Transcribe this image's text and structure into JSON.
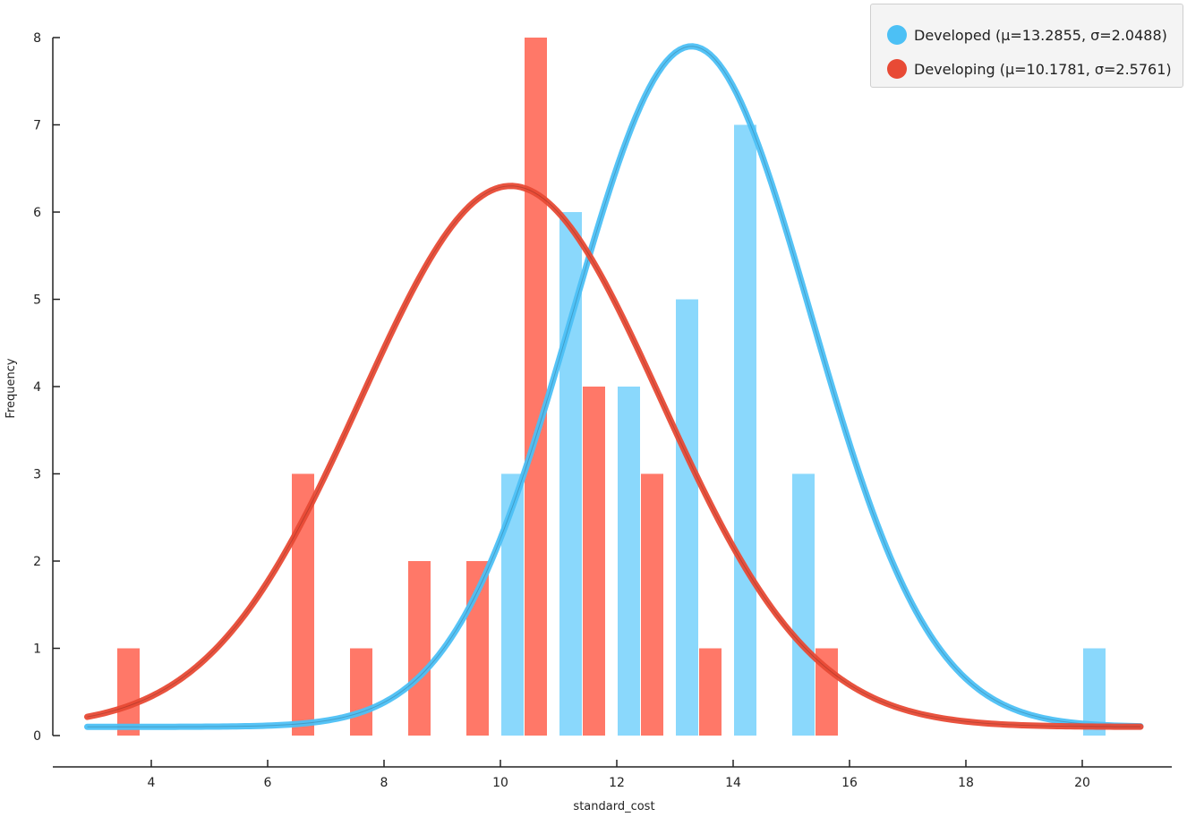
{
  "chart_data": {
    "type": "bar",
    "title": "",
    "xlabel": "standard_cost",
    "ylabel": "Frequency",
    "xlim": [
      2.5,
      21.5
    ],
    "ylim": [
      0,
      8
    ],
    "xticks": [
      4,
      6,
      8,
      10,
      12,
      14,
      16,
      18,
      20
    ],
    "yticks": [
      0,
      1,
      2,
      3,
      4,
      5,
      6,
      7,
      8
    ],
    "bin_width": 1,
    "series": [
      {
        "name": "Developed",
        "legend_label": "Developed (μ=13.2855, σ=2.0488)",
        "color": "#4cc0f5",
        "bar_color": "#8ad8fc",
        "mean": 13.2855,
        "std": 2.0488,
        "curve_peak": 7.9,
        "bins": [
          10,
          11,
          12,
          13,
          14,
          15,
          20
        ],
        "values": [
          3,
          6,
          4,
          5,
          7,
          3,
          1
        ]
      },
      {
        "name": "Developing",
        "legend_label": "Developing (μ=10.1781, σ=2.5761)",
        "color": "#e84a35",
        "bar_color": "#ff7868",
        "mean": 10.1781,
        "std": 2.5761,
        "curve_peak": 6.3,
        "bins": [
          3,
          6,
          7,
          8,
          9,
          10,
          11,
          12,
          13,
          15
        ],
        "values": [
          1,
          3,
          1,
          2,
          2,
          8,
          4,
          3,
          1,
          1
        ]
      }
    ],
    "curve_baseline": 0.1,
    "curve_x_range": [
      2.9,
      21.0
    ],
    "legend_position": "top-right"
  }
}
